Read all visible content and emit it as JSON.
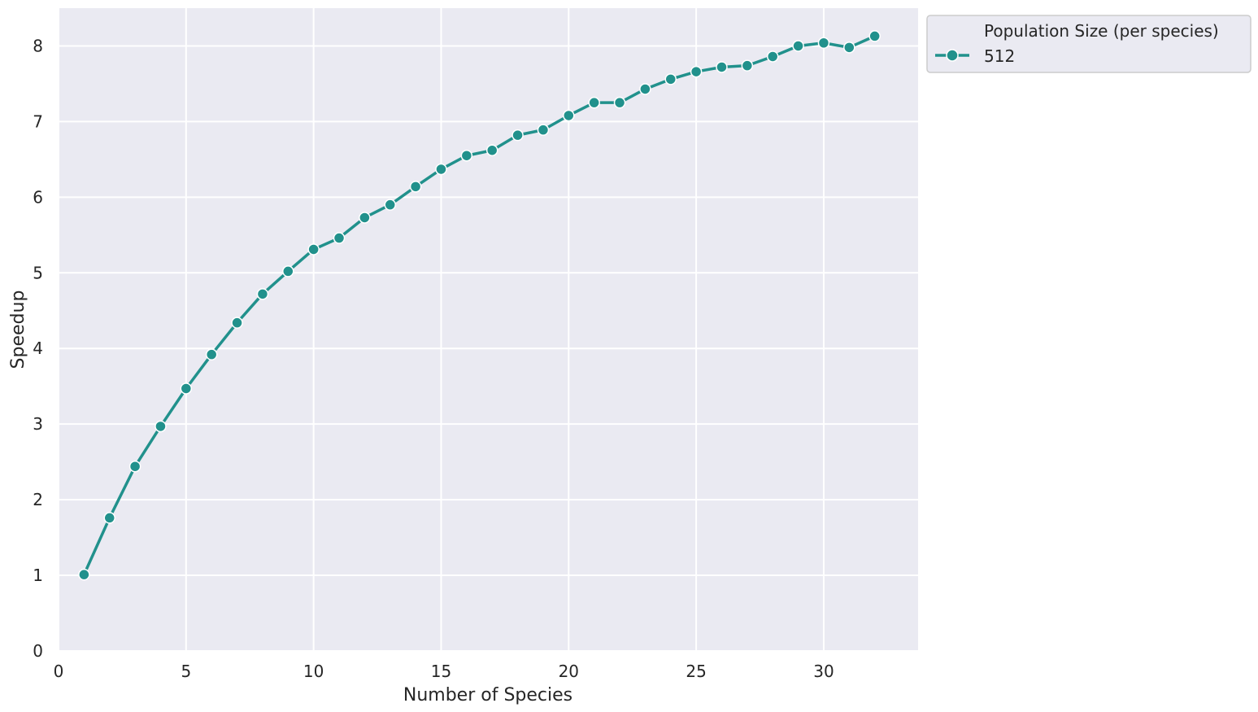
{
  "chart_data": {
    "type": "line",
    "xlabel": "Number of Species",
    "ylabel": "Speedup",
    "xlim": [
      0,
      33.7
    ],
    "ylim": [
      0,
      8.5
    ],
    "xticks": [
      0,
      5,
      10,
      15,
      20,
      25,
      30
    ],
    "yticks": [
      0,
      1,
      2,
      3,
      4,
      5,
      6,
      7,
      8
    ],
    "xtick_labels": [
      "0",
      "5",
      "10",
      "15",
      "20",
      "25",
      "30"
    ],
    "ytick_labels": [
      "0",
      "1",
      "2",
      "3",
      "4",
      "5",
      "6",
      "7",
      "8"
    ],
    "grid": true,
    "legend": {
      "title": "Population Size (per species)",
      "placement": "outside-top-right"
    },
    "series": [
      {
        "name": "512",
        "color": "#21918c",
        "marker": "circle",
        "x": [
          1,
          2,
          3,
          4,
          5,
          6,
          7,
          8,
          9,
          10,
          11,
          12,
          13,
          14,
          15,
          16,
          17,
          18,
          19,
          20,
          21,
          22,
          23,
          24,
          25,
          26,
          27,
          28,
          29,
          30,
          31,
          32
        ],
        "y": [
          1.01,
          1.76,
          2.44,
          2.97,
          3.47,
          3.92,
          4.34,
          4.72,
          5.02,
          5.31,
          5.46,
          5.73,
          5.9,
          6.14,
          6.37,
          6.55,
          6.62,
          6.82,
          6.89,
          7.08,
          7.25,
          7.25,
          7.43,
          7.56,
          7.66,
          7.72,
          7.74,
          7.86,
          8.0,
          8.04,
          7.98,
          8.13
        ]
      }
    ]
  }
}
